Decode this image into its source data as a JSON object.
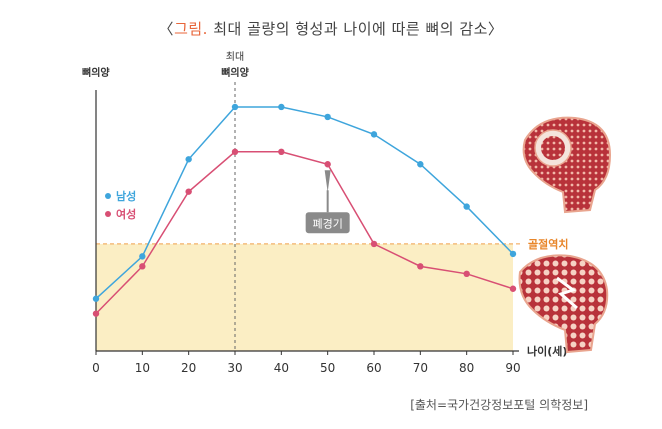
{
  "title": {
    "open_bracket": "〈",
    "accent": "그림.",
    "text": " 최대 골량의 형성과 나이에 따른 뼈의 감소",
    "close_bracket": "〉"
  },
  "source": "[출처=국가건강정보포털 의학정보]",
  "colors": {
    "male": "#3ea5dc",
    "female": "#d84f74",
    "threshold_fill": "#fbeec4",
    "threshold_line": "#f0a04b",
    "threshold_label": "#e8862a",
    "axis": "#333333",
    "callout_bg": "#8a8a8a"
  },
  "chart_data": {
    "type": "line",
    "title": "〈그림. 최대 골량의 형성과 나이에 따른 뼈의 감소〉",
    "xlabel": "나이(세)",
    "ylabel": "뼈의양",
    "x": [
      0,
      10,
      20,
      30,
      40,
      50,
      60,
      70,
      80,
      90
    ],
    "xlim": [
      0,
      90
    ],
    "ylim": [
      0,
      100
    ],
    "series": [
      {
        "name": "남성",
        "color": "#3ea5dc",
        "values": [
          21,
          38,
          77,
          98,
          98,
          94,
          87,
          75,
          58,
          39
        ]
      },
      {
        "name": "여성",
        "color": "#d84f74",
        "values": [
          15,
          34,
          64,
          80,
          80,
          75,
          43,
          34,
          31,
          25
        ]
      }
    ],
    "legend_position": "left",
    "annotations": {
      "peak_label_line1": "최대",
      "peak_label_line2": "뼈의양",
      "peak_x": 30,
      "fracture_threshold": {
        "label": "골절역치",
        "y": 43
      },
      "menopause": {
        "label": "폐경기",
        "x": 50
      }
    },
    "illustrations": {
      "healthy_bone": "healthy-bone-cross-section",
      "osteoporotic_bone": "fractured-osteoporotic-bone"
    }
  }
}
